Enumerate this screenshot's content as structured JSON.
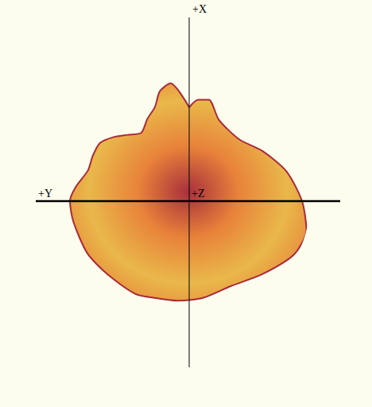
{
  "chart_data": {
    "type": "polar",
    "axis_labels": {
      "x": "+X",
      "y": "+Y",
      "z": "+Z"
    },
    "angle": [
      0,
      9,
      15,
      20,
      27,
      35,
      43,
      50,
      57,
      65,
      73,
      83,
      90,
      100,
      117,
      132,
      150,
      161,
      174,
      188,
      206,
      225,
      243,
      256,
      270,
      287,
      304,
      321,
      340,
      349,
      355,
      360
    ],
    "radius": [
      118,
      150,
      143,
      126,
      116,
      105,
      114,
      125,
      134,
      134,
      133,
      144,
      150,
      148,
      144,
      138,
      135,
      129,
      126,
      123,
      119,
      130,
      148,
      152,
      142,
      128,
      112,
      100,
      109,
      130,
      128,
      118
    ],
    "color": "#e8823a",
    "tick_labels": false
  }
}
